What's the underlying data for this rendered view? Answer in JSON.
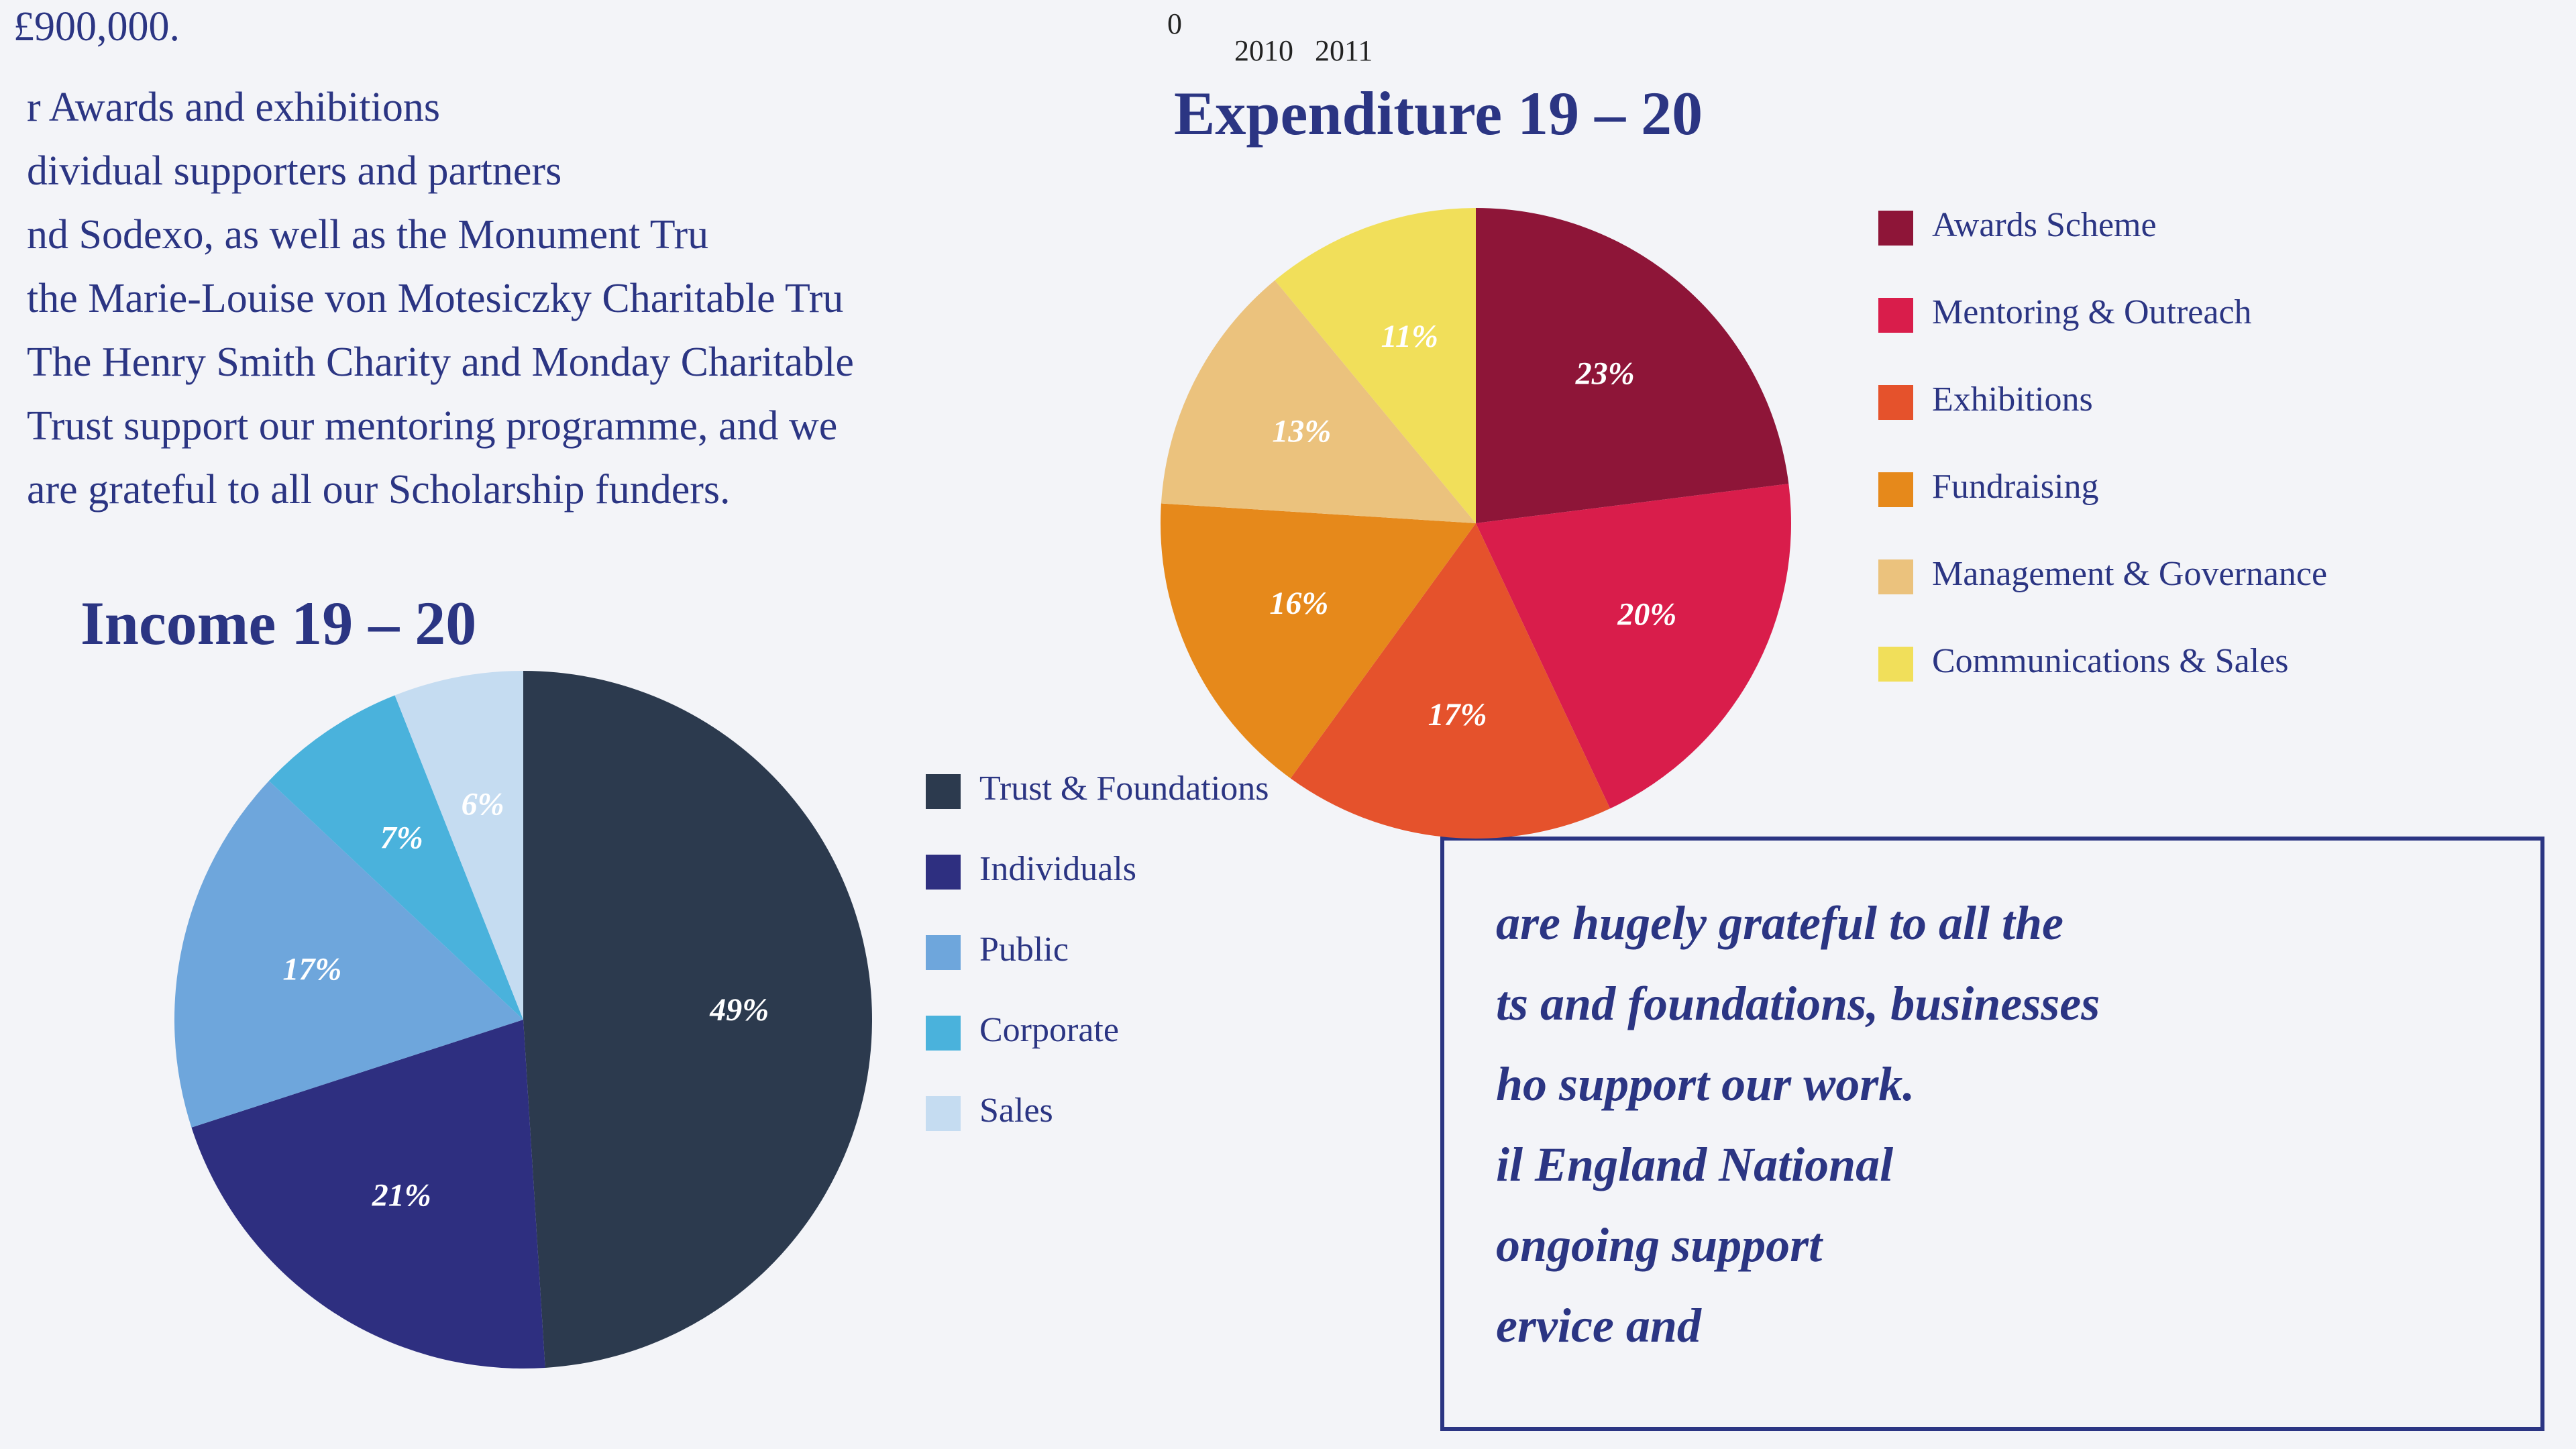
{
  "chart_data": [
    {
      "type": "pie",
      "title": "Income 19 – 20",
      "categories": [
        "Trust & Foundations",
        "Individuals",
        "Public",
        "Corporate",
        "Sales"
      ],
      "values": [
        49,
        21,
        17,
        7,
        6
      ],
      "value_labels": [
        "49%",
        "21%",
        "17%",
        "7%",
        "6%"
      ],
      "colors": [
        "#2c3a4e",
        "#2e2f80",
        "#6ea6dc",
        "#4ab2dc",
        "#c5dcf1"
      ]
    },
    {
      "type": "pie",
      "title": "Expenditure 19 – 20",
      "categories": [
        "Awards Scheme",
        "Mentoring & Outreach",
        "Exhibitions",
        "Fundraising",
        "Management & Governance",
        "Communications & Sales"
      ],
      "values": [
        23,
        20,
        17,
        16,
        13,
        11
      ],
      "value_labels": [
        "23%",
        "20%",
        "17%",
        "16%",
        "13%",
        "11%"
      ],
      "colors": [
        "#8e1538",
        "#d91d4b",
        "#e5522c",
        "#e6891b",
        "#ebc27d",
        "#f1df5a"
      ]
    }
  ],
  "fragments": {
    "amount": "£900,000.",
    "axis_zero": "0",
    "years": [
      "2010",
      "2011"
    ]
  },
  "paragraph": [
    "r Awards and exhibitions",
    "dividual supporters and partners",
    "nd Sodexo, as well as the Monument Tru",
    "the Marie-Louise von Motesiczky Charitable Tru",
    "The Henry Smith Charity and Monday Charitable",
    "Trust support our mentoring programme, and we",
    "are grateful to all our Scholarship funders."
  ],
  "quote": [
    "are hugely grateful to all the",
    "ts and foundations, businesses",
    "ho support our work.",
    "il England National",
    "ongoing support",
    "ervice and"
  ]
}
